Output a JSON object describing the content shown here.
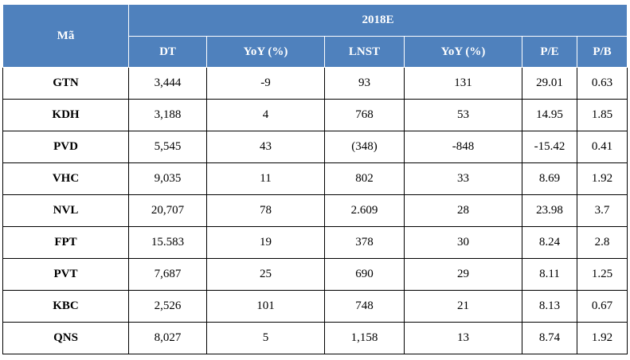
{
  "table": {
    "ma_header": "Mã",
    "group_header": "2018E",
    "columns": [
      "DT",
      "YoY (%)",
      "LNST",
      "YoY (%)",
      "P/E",
      "P/B"
    ],
    "rows": [
      [
        "GTN",
        "3,444",
        "-9",
        "93",
        "131",
        "29.01",
        "0.63"
      ],
      [
        "KDH",
        "3,188",
        "4",
        "768",
        "53",
        "14.95",
        "1.85"
      ],
      [
        "PVD",
        "5,545",
        "43",
        "(348)",
        "-848",
        "-15.42",
        "0.41"
      ],
      [
        "VHC",
        "9,035",
        "11",
        "802",
        "33",
        "8.69",
        "1.92"
      ],
      [
        "NVL",
        "20,707",
        "78",
        "2.609",
        "28",
        "23.98",
        "3.7"
      ],
      [
        "FPT",
        "15.583",
        "19",
        "378",
        "30",
        "8.24",
        "2.8"
      ],
      [
        "PVT",
        "7,687",
        "25",
        "690",
        "29",
        "8.11",
        "1.25"
      ],
      [
        "KBC",
        "2,526",
        "101",
        "748",
        "21",
        "8.13",
        "0.67"
      ],
      [
        "QNS",
        "8,027",
        "5",
        "1,158",
        "13",
        "8.74",
        "1.92"
      ]
    ]
  }
}
